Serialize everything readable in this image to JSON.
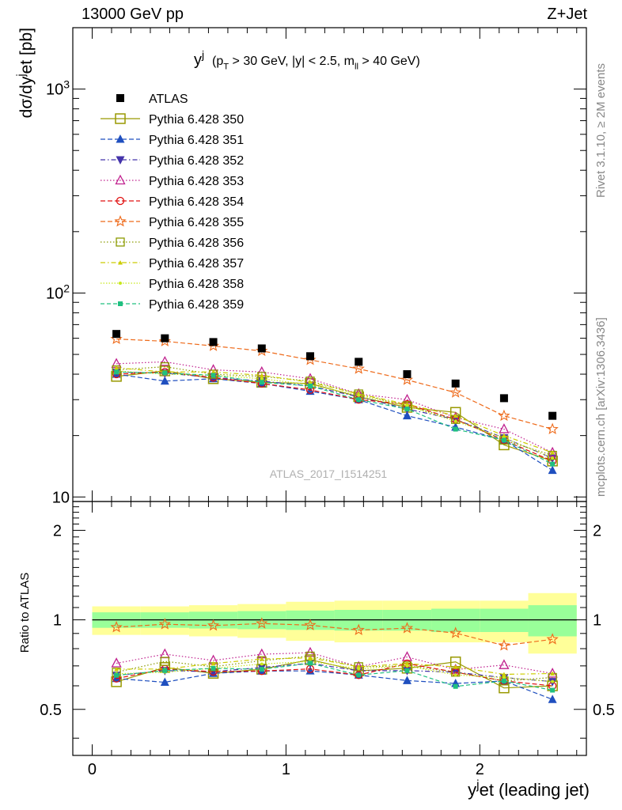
{
  "header": {
    "left": "13000 GeV pp",
    "right": "Z+Jet"
  },
  "side_labels": {
    "rivet": "Rivet 3.1.10, ≥ 2M events",
    "mcplots": "mcplots.cern.ch [arXiv:1306.3436]"
  },
  "chart_data": {
    "type": "scatter",
    "title": {
      "main": "y",
      "main_sup": "j",
      "cond_a": "(p",
      "cond_a_sub": "T",
      "cond_b": " > 30 GeV, |y| < 2.5, m",
      "cond_b_sub": "ll",
      "cond_c": " > 40 GeV)"
    },
    "watermark": "ATLAS_2017_I1514251",
    "xlabel": {
      "a": "y",
      "a_sup": "j",
      "b": "et (leading jet)"
    },
    "ylabel": {
      "a": "dσ/dy",
      "a_sup": "j",
      "b": "et [pb]"
    },
    "ratio_ylabel": "Ratio to ATLAS",
    "xlim": [
      -0.1,
      2.55
    ],
    "ylim": [
      9.5,
      2000
    ],
    "yscale": "log",
    "ratio_ylim": [
      0.35,
      2.5
    ],
    "ratio_yscale": "log",
    "x_ticks": [
      "0",
      "1",
      "2"
    ],
    "y_ticks": [
      {
        "value": 10,
        "base": "10",
        "exp": ""
      },
      {
        "value": 100,
        "base": "10",
        "exp": "2"
      },
      {
        "value": 1000,
        "base": "10",
        "exp": "3"
      }
    ],
    "ratio_ticks": [
      {
        "value": 0.5,
        "label": "0.5"
      },
      {
        "value": 1,
        "label": "1"
      },
      {
        "value": 2,
        "label": "2"
      }
    ],
    "x": [
      0.125,
      0.375,
      0.625,
      0.875,
      1.125,
      1.375,
      1.625,
      1.875,
      2.125,
      2.375
    ],
    "x_edges": [
      0,
      0.25,
      0.5,
      0.75,
      1.0,
      1.25,
      1.5,
      1.75,
      2.0,
      2.25,
      2.5
    ],
    "data": {
      "name": "ATLAS",
      "values": [
        63,
        60,
        57.5,
        53.5,
        49,
        46,
        40,
        36,
        30.5,
        25
      ]
    },
    "uncertainty_bands": {
      "inner": [
        0.06,
        0.06,
        0.065,
        0.07,
        0.075,
        0.08,
        0.08,
        0.09,
        0.09,
        0.12
      ],
      "outer": [
        0.11,
        0.11,
        0.12,
        0.13,
        0.15,
        0.16,
        0.16,
        0.16,
        0.16,
        0.23
      ]
    },
    "legend_position": "top-left",
    "series": [
      {
        "name": "Pythia 6.428 350",
        "color": "#999900",
        "marker": "square-open-large",
        "dash": "",
        "values": [
          39,
          41.5,
          38,
          36.5,
          36,
          31,
          27.5,
          26,
          18,
          15
        ]
      },
      {
        "name": "Pythia 6.428 351",
        "color": "#1f4fbf",
        "marker": "triangle-up",
        "dash": "6,3",
        "values": [
          40,
          37,
          38,
          36,
          33,
          30,
          25,
          22,
          19,
          13.5
        ]
      },
      {
        "name": "Pythia 6.428 352",
        "color": "#4433aa",
        "marker": "triangle-down",
        "dash": "6,3,1.5,3",
        "values": [
          41,
          40.5,
          38.5,
          37,
          35,
          31,
          27,
          24,
          19.5,
          15.5
        ]
      },
      {
        "name": "Pythia 6.428 353",
        "color": "#c0208e",
        "marker": "triangle-up-open",
        "dash": "1.5,2.5",
        "values": [
          45,
          46,
          42,
          41,
          38,
          32,
          30,
          24.5,
          21.5,
          16.5
        ]
      },
      {
        "name": "Pythia 6.428 354",
        "color": "#e01010",
        "marker": "circle-open",
        "dash": "6,3",
        "values": [
          40,
          41,
          38.5,
          36,
          33.5,
          30,
          28.5,
          24,
          19,
          15
        ]
      },
      {
        "name": "Pythia 6.428 355",
        "color": "#ee6a1a",
        "marker": "star-open",
        "dash": "6,3",
        "values": [
          59.5,
          58,
          55,
          52,
          47,
          42.5,
          37.5,
          32.5,
          25,
          21.5
        ]
      },
      {
        "name": "Pythia 6.428 356",
        "color": "#8b9a00",
        "marker": "square-open",
        "dash": "1.5,2.5",
        "values": [
          42,
          43.5,
          40,
          39,
          37,
          32,
          28,
          24,
          19,
          16
        ]
      },
      {
        "name": "Pythia 6.428 357",
        "color": "#cccc00",
        "marker": "tri-small",
        "dash": "6,3,1.5,3",
        "values": [
          43,
          41,
          41,
          39.5,
          36.5,
          32,
          28.5,
          25,
          20,
          16.5
        ]
      },
      {
        "name": "Pythia 6.428 358",
        "color": "#c8e81a",
        "marker": "dot",
        "dash": "1.5,2",
        "values": [
          41.5,
          40,
          39.5,
          38,
          35.5,
          31.5,
          28,
          23.5,
          19.5,
          15.5
        ]
      },
      {
        "name": "Pythia 6.428 359",
        "color": "#20c080",
        "marker": "square-small",
        "dash": "5,3",
        "values": [
          41,
          40.5,
          39.5,
          36.5,
          35,
          30,
          27,
          21.5,
          19,
          14.5
        ]
      }
    ]
  }
}
